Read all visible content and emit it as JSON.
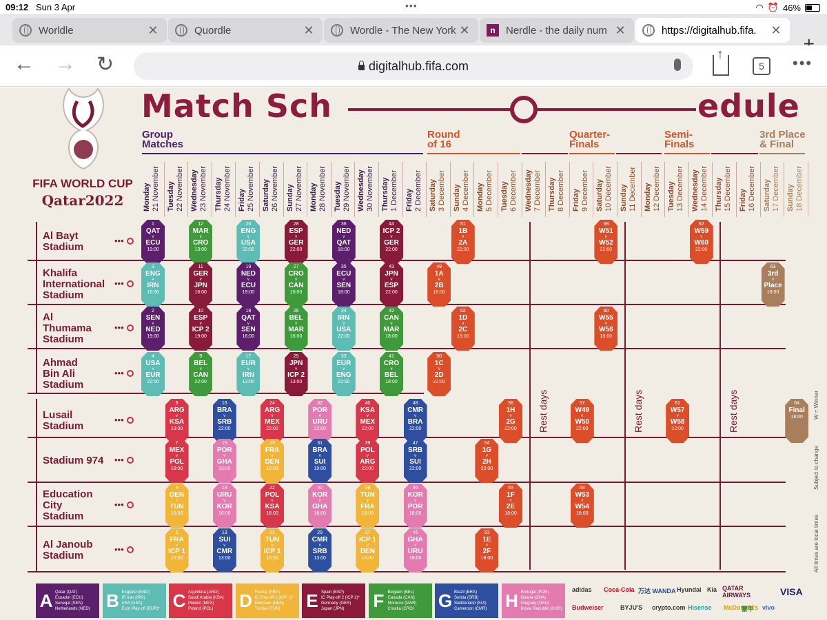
{
  "status": {
    "time": "09:12",
    "date": "Sun 3 Apr",
    "battery": "46%",
    "battery_fraction": 0.46
  },
  "tabs": [
    {
      "title": "Worldle",
      "icon": "globe-icon"
    },
    {
      "title": "Quordle",
      "icon": "globe-icon"
    },
    {
      "title": "Wordle - The New York",
      "icon": "globe-icon"
    },
    {
      "title": "Nerdle - the daily num",
      "icon": "nerdle-icon"
    },
    {
      "title": "https://digitalhub.fifa.",
      "icon": "globe-icon"
    }
  ],
  "address": {
    "url": "digitalhub.fifa.com"
  },
  "toolbar": {
    "tab_count": "5"
  },
  "poster": {
    "title_left": "Match Sch",
    "title_right": "edule",
    "fifa": "FIFA WORLD CUP",
    "qatar": "Qatar2022",
    "stages": {
      "group": [
        "Group",
        "Matches"
      ],
      "r16": [
        "Round",
        "of 16"
      ],
      "qf": [
        "Quarter-",
        "Finals"
      ],
      "sf": [
        "Semi-",
        "Finals"
      ],
      "final": [
        "3rd Place",
        "& Final"
      ]
    },
    "dates": [
      {
        "day": "Monday",
        "date": "21 November"
      },
      {
        "day": "Tuesday",
        "date": "22 November"
      },
      {
        "day": "Wednesday",
        "date": "23 November"
      },
      {
        "day": "Thursday",
        "date": "24 November"
      },
      {
        "day": "Friday",
        "date": "25 November"
      },
      {
        "day": "Saturday",
        "date": "26 November"
      },
      {
        "day": "Sunday",
        "date": "27 November"
      },
      {
        "day": "Monday",
        "date": "28 November"
      },
      {
        "day": "Tuesday",
        "date": "29 November"
      },
      {
        "day": "Wednesday",
        "date": "30 November"
      },
      {
        "day": "Thursday",
        "date": "1 December"
      },
      {
        "day": "Friday",
        "date": "2 December"
      },
      {
        "day": "Saturday",
        "date": "3 December"
      },
      {
        "day": "Sunday",
        "date": "4 December"
      },
      {
        "day": "Monday",
        "date": "5 December"
      },
      {
        "day": "Tuesday",
        "date": "6 December"
      },
      {
        "day": "Wednesday",
        "date": "7 December"
      },
      {
        "day": "Thursday",
        "date": "8 December"
      },
      {
        "day": "Friday",
        "date": "9 December"
      },
      {
        "day": "Saturday",
        "date": "10 December"
      },
      {
        "day": "Sunday",
        "date": "11 December"
      },
      {
        "day": "Monday",
        "date": "12 December"
      },
      {
        "day": "Tuesday",
        "date": "13 December"
      },
      {
        "day": "Wednesday",
        "date": "14 December"
      },
      {
        "day": "Thursday",
        "date": "15 December"
      },
      {
        "day": "Friday",
        "date": "16 December"
      },
      {
        "day": "Saturday",
        "date": "17 December"
      },
      {
        "day": "Sunday",
        "date": "18 December"
      }
    ],
    "stadiums": [
      [
        "Al Bayt",
        "Stadium"
      ],
      [
        "Khalifa",
        "International",
        "Stadium"
      ],
      [
        "Al",
        "Thumama",
        "Stadium"
      ],
      [
        "Ahmad",
        "Bin Ali",
        "Stadium"
      ],
      [
        "Lusail",
        "Stadium"
      ],
      [
        "Stadium 974"
      ],
      [
        "Education",
        "City",
        "Stadium"
      ],
      [
        "Al Janoub",
        "Stadium"
      ]
    ],
    "rest_label": "Rest days",
    "notes": [
      "W = Winner",
      "Subject to change",
      "All times are local times"
    ],
    "groups": [
      {
        "letter": "A",
        "color": "#5b1f6b",
        "teams": [
          "Qatar (QAT)",
          "Ecuador (ECU)",
          "Senegal (SEN)",
          "Netherlands (NED)"
        ]
      },
      {
        "letter": "B",
        "color": "#5dbcb3",
        "teams": [
          "England (ENG)",
          "IR Iran (IRN)",
          "USA (USA)",
          "Euro Play-off (EUR)*"
        ]
      },
      {
        "letter": "C",
        "color": "#d8374a",
        "teams": [
          "Argentina (ARG)",
          "Saudi Arabia (KSA)",
          "Mexico (MEX)",
          "Poland (POL)"
        ]
      },
      {
        "letter": "D",
        "color": "#f1b53a",
        "teams": [
          "France (FRA)",
          "IC Play-off 1 (ICP 1)*",
          "Denmark (DEN)",
          "Tunisia (TUN)"
        ]
      },
      {
        "letter": "E",
        "color": "#8a1a3a",
        "teams": [
          "Spain (ESP)",
          "IC Play-off 2 (ICP 2)*",
          "Germany (GER)",
          "Japan (JPN)"
        ]
      },
      {
        "letter": "F",
        "color": "#3f9a3c",
        "teams": [
          "Belgium (BEL)",
          "Canada (CAN)",
          "Morocco (MAR)",
          "Croatia (CRO)"
        ]
      },
      {
        "letter": "G",
        "color": "#2e4fa0",
        "teams": [
          "Brazil (BRA)",
          "Serbia (SRB)",
          "Switzerland (SUI)",
          "Cameroon (CMR)"
        ]
      },
      {
        "letter": "H",
        "color": "#e47bb0",
        "teams": [
          "Portugal (POR)",
          "Ghana (GHA)",
          "Uruguay (URU)",
          "Korea Republic (KOR)"
        ]
      }
    ],
    "sponsors": [
      "adidas",
      "Coca-Cola",
      "万达 WANDA",
      "Hyundai",
      "Kia",
      "QATAR AIRWAYS",
      "VISA",
      "Budweiser",
      "BYJU'S",
      "crypto.com",
      "Hisense",
      "McDonald's",
      "蒙牛",
      "vivo"
    ],
    "matches": [
      {
        "row": 0,
        "col": 0,
        "num": "1",
        "t1": "QAT",
        "t2": "ECU",
        "time": "19:00",
        "g": "A"
      },
      {
        "row": 0,
        "col": 2,
        "num": "12",
        "t1": "MAR",
        "t2": "CRO",
        "time": "13:00",
        "g": "F"
      },
      {
        "row": 0,
        "col": 4,
        "num": "20",
        "t1": "ENG",
        "t2": "USA",
        "time": "22:00",
        "g": "B"
      },
      {
        "row": 0,
        "col": 6,
        "num": "28",
        "t1": "ESP",
        "t2": "GER",
        "time": "22:00",
        "g": "E"
      },
      {
        "row": 0,
        "col": 8,
        "num": "36",
        "t1": "NED",
        "t2": "QAT",
        "time": "18:00",
        "g": "A"
      },
      {
        "row": 0,
        "col": 10,
        "num": "44",
        "t1": "ICP 2",
        "t2": "GER",
        "time": "22:00",
        "g": "E"
      },
      {
        "row": 0,
        "col": 13,
        "num": "51",
        "t1": "1B",
        "t2": "2A",
        "time": "22:00",
        "g": "K"
      },
      {
        "row": 0,
        "col": 19,
        "num": "59",
        "t1": "W51",
        "t2": "W52",
        "time": "22:00",
        "g": "K"
      },
      {
        "row": 0,
        "col": 23,
        "num": "62",
        "t1": "W59",
        "t2": "W60",
        "time": "22:00",
        "g": "K"
      },
      {
        "row": 1,
        "col": 0,
        "num": "3",
        "t1": "ENG",
        "t2": "IRN",
        "time": "16:00",
        "g": "B"
      },
      {
        "row": 1,
        "col": 2,
        "num": "11",
        "t1": "GER",
        "t2": "JPN",
        "time": "16:00",
        "g": "E"
      },
      {
        "row": 1,
        "col": 4,
        "num": "19",
        "t1": "NED",
        "t2": "ECU",
        "time": "19:00",
        "g": "A"
      },
      {
        "row": 1,
        "col": 6,
        "num": "27",
        "t1": "CRO",
        "t2": "CAN",
        "time": "19:00",
        "g": "F"
      },
      {
        "row": 1,
        "col": 8,
        "num": "35",
        "t1": "ECU",
        "t2": "SEN",
        "time": "18:00",
        "g": "A"
      },
      {
        "row": 1,
        "col": 10,
        "num": "43",
        "t1": "JPN",
        "t2": "ESP",
        "time": "22:00",
        "g": "E"
      },
      {
        "row": 1,
        "col": 12,
        "num": "49",
        "t1": "1A",
        "t2": "2B",
        "time": "18:00",
        "g": "K"
      },
      {
        "row": 1,
        "col": 26,
        "num": "63",
        "t1": "3rd",
        "t2": "Place",
        "time": "18:00",
        "g": "F3"
      },
      {
        "row": 2,
        "col": 0,
        "num": "2",
        "t1": "SEN",
        "t2": "NED",
        "time": "19:00",
        "g": "A"
      },
      {
        "row": 2,
        "col": 2,
        "num": "10",
        "t1": "ESP",
        "t2": "ICP 2",
        "time": "19:00",
        "g": "E"
      },
      {
        "row": 2,
        "col": 4,
        "num": "18",
        "t1": "QAT",
        "t2": "SEN",
        "time": "16:00",
        "g": "A"
      },
      {
        "row": 2,
        "col": 6,
        "num": "26",
        "t1": "BEL",
        "t2": "MAR",
        "time": "16:00",
        "g": "F"
      },
      {
        "row": 2,
        "col": 8,
        "num": "34",
        "t1": "IRN",
        "t2": "USA",
        "time": "22:00",
        "g": "B"
      },
      {
        "row": 2,
        "col": 10,
        "num": "42",
        "t1": "CAN",
        "t2": "MAR",
        "time": "18:00",
        "g": "F"
      },
      {
        "row": 2,
        "col": 13,
        "num": "52",
        "t1": "1D",
        "t2": "2C",
        "time": "18:00",
        "g": "K"
      },
      {
        "row": 2,
        "col": 19,
        "num": "60",
        "t1": "W55",
        "t2": "W56",
        "time": "18:00",
        "g": "K"
      },
      {
        "row": 3,
        "col": 0,
        "num": "4",
        "t1": "USA",
        "t2": "EUR",
        "time": "22:00",
        "g": "B"
      },
      {
        "row": 3,
        "col": 2,
        "num": "9",
        "t1": "BEL",
        "t2": "CAN",
        "time": "22:00",
        "g": "F"
      },
      {
        "row": 3,
        "col": 4,
        "num": "17",
        "t1": "EUR",
        "t2": "IRN",
        "time": "13:00",
        "g": "B"
      },
      {
        "row": 3,
        "col": 6,
        "num": "25",
        "t1": "JPN",
        "t2": "ICP 2",
        "time": "13:00",
        "g": "E"
      },
      {
        "row": 3,
        "col": 8,
        "num": "33",
        "t1": "EUR",
        "t2": "ENG",
        "time": "22:00",
        "g": "B"
      },
      {
        "row": 3,
        "col": 10,
        "num": "41",
        "t1": "CRO",
        "t2": "BEL",
        "time": "18:00",
        "g": "F"
      },
      {
        "row": 3,
        "col": 12,
        "num": "50",
        "t1": "1C",
        "t2": "2D",
        "time": "22:00",
        "g": "K"
      },
      {
        "row": 4,
        "col": 1,
        "num": "8",
        "t1": "ARG",
        "t2": "KSA",
        "time": "13:00",
        "g": "C"
      },
      {
        "row": 4,
        "col": 3,
        "num": "16",
        "t1": "BRA",
        "t2": "SRB",
        "time": "22:00",
        "g": "G"
      },
      {
        "row": 4,
        "col": 5,
        "num": "24",
        "t1": "ARG",
        "t2": "MEX",
        "time": "22:00",
        "g": "C"
      },
      {
        "row": 4,
        "col": 7,
        "num": "32",
        "t1": "POR",
        "t2": "URU",
        "time": "22:00",
        "g": "H"
      },
      {
        "row": 4,
        "col": 9,
        "num": "40",
        "t1": "KSA",
        "t2": "MEX",
        "time": "22:00",
        "g": "C"
      },
      {
        "row": 4,
        "col": 11,
        "num": "48",
        "t1": "CMR",
        "t2": "BRA",
        "time": "22:00",
        "g": "G"
      },
      {
        "row": 4,
        "col": 15,
        "num": "56",
        "t1": "1H",
        "t2": "2G",
        "time": "22:00",
        "g": "K"
      },
      {
        "row": 4,
        "col": 18,
        "num": "57",
        "t1": "W49",
        "t2": "W50",
        "time": "22:00",
        "g": "K"
      },
      {
        "row": 4,
        "col": 22,
        "num": "61",
        "t1": "W57",
        "t2": "W58",
        "time": "22:00",
        "g": "K"
      },
      {
        "row": 4,
        "col": 27,
        "num": "64",
        "t1": "Final",
        "t2": "",
        "time": "18:00",
        "g": "F3"
      },
      {
        "row": 5,
        "col": 1,
        "num": "7",
        "t1": "MEX",
        "t2": "POL",
        "time": "19:00",
        "g": "C"
      },
      {
        "row": 5,
        "col": 3,
        "num": "15",
        "t1": "POR",
        "t2": "GHA",
        "time": "19:00",
        "g": "H"
      },
      {
        "row": 5,
        "col": 5,
        "num": "23",
        "t1": "FRA",
        "t2": "DEN",
        "time": "19:00",
        "g": "D"
      },
      {
        "row": 5,
        "col": 7,
        "num": "31",
        "t1": "BRA",
        "t2": "SUI",
        "time": "19:00",
        "g": "G"
      },
      {
        "row": 5,
        "col": 9,
        "num": "39",
        "t1": "POL",
        "t2": "ARG",
        "time": "22:00",
        "g": "C"
      },
      {
        "row": 5,
        "col": 11,
        "num": "47",
        "t1": "SRB",
        "t2": "SUI",
        "time": "22:00",
        "g": "G"
      },
      {
        "row": 5,
        "col": 14,
        "num": "54",
        "t1": "1G",
        "t2": "2H",
        "time": "22:00",
        "g": "K"
      },
      {
        "row": 6,
        "col": 1,
        "num": "6",
        "t1": "DEN",
        "t2": "TUN",
        "time": "16:00",
        "g": "D"
      },
      {
        "row": 6,
        "col": 3,
        "num": "14",
        "t1": "URU",
        "t2": "KOR",
        "time": "16:00",
        "g": "H"
      },
      {
        "row": 6,
        "col": 5,
        "num": "22",
        "t1": "POL",
        "t2": "KSA",
        "time": "16:00",
        "g": "C"
      },
      {
        "row": 6,
        "col": 7,
        "num": "30",
        "t1": "KOR",
        "t2": "GHA",
        "time": "16:00",
        "g": "H"
      },
      {
        "row": 6,
        "col": 9,
        "num": "38",
        "t1": "TUN",
        "t2": "FRA",
        "time": "18:00",
        "g": "D"
      },
      {
        "row": 6,
        "col": 11,
        "num": "46",
        "t1": "KOR",
        "t2": "POR",
        "time": "18:00",
        "g": "H"
      },
      {
        "row": 6,
        "col": 15,
        "num": "55",
        "t1": "1F",
        "t2": "2E",
        "time": "18:00",
        "g": "K"
      },
      {
        "row": 6,
        "col": 18,
        "num": "58",
        "t1": "W53",
        "t2": "W54",
        "time": "18:00",
        "g": "K"
      },
      {
        "row": 7,
        "col": 1,
        "num": "5",
        "t1": "FRA",
        "t2": "ICP 1",
        "time": "22:00",
        "g": "D"
      },
      {
        "row": 7,
        "col": 3,
        "num": "13",
        "t1": "SUI",
        "t2": "CMR",
        "time": "13:00",
        "g": "G"
      },
      {
        "row": 7,
        "col": 5,
        "num": "21",
        "t1": "TUN",
        "t2": "ICP 1",
        "time": "13:00",
        "g": "D"
      },
      {
        "row": 7,
        "col": 7,
        "num": "29",
        "t1": "CMR",
        "t2": "SRB",
        "time": "13:00",
        "g": "G"
      },
      {
        "row": 7,
        "col": 9,
        "num": "37",
        "t1": "ICP 1",
        "t2": "DEN",
        "time": "18:00",
        "g": "D"
      },
      {
        "row": 7,
        "col": 11,
        "num": "45",
        "t1": "GHA",
        "t2": "URU",
        "time": "18:00",
        "g": "H"
      },
      {
        "row": 7,
        "col": 14,
        "num": "53",
        "t1": "1E",
        "t2": "2F",
        "time": "18:00",
        "g": "K"
      }
    ],
    "match_colors": {
      "A": "#5b1f6b",
      "B": "#5dbcb3",
      "C": "#d8374a",
      "D": "#f1b53a",
      "E": "#8a1a3a",
      "F": "#3f9a3c",
      "G": "#2e4fa0",
      "H": "#e47bb0",
      "K": "#dc4e2a",
      "F3": "#a87e5c"
    }
  }
}
